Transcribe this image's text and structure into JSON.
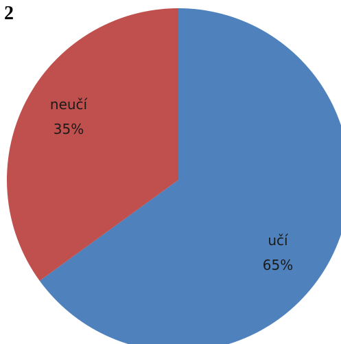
{
  "figure_number": "2",
  "chart_data": {
    "type": "pie",
    "slices": [
      {
        "label": "učí",
        "percent_label": "65%",
        "value": 65,
        "color": "#4F81BD"
      },
      {
        "label": "neučí",
        "percent_label": "35%",
        "value": 35,
        "color": "#C0504D"
      }
    ],
    "start": "top",
    "direction": "clockwise",
    "legend": "none"
  }
}
